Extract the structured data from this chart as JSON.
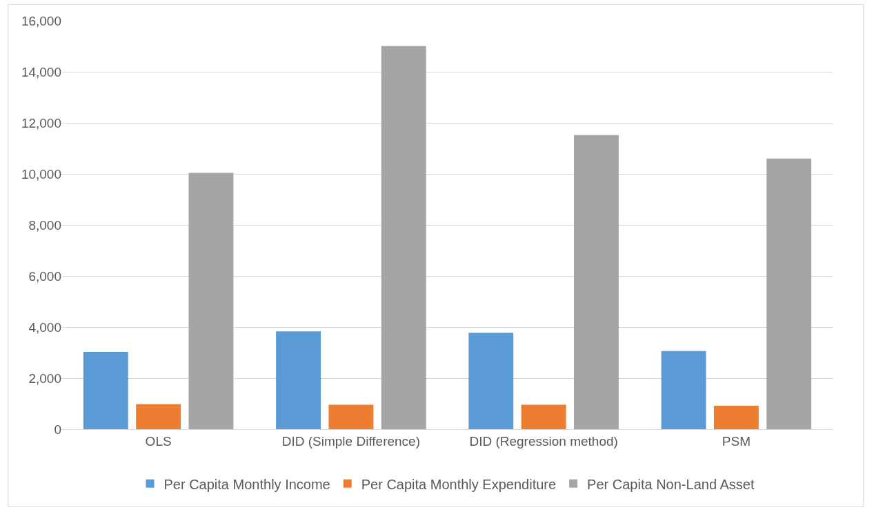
{
  "chart_data": {
    "type": "bar",
    "categories": [
      "OLS",
      "DID (Simple Difference)",
      "DID (Regression method)",
      "PSM"
    ],
    "series": [
      {
        "name": "Per Capita Monthly Income",
        "color": "#5b9bd5",
        "values": [
          3030,
          3830,
          3780,
          3060
        ]
      },
      {
        "name": "Per Capita Monthly Expenditure",
        "color": "#ed7d31",
        "values": [
          980,
          960,
          960,
          920
        ]
      },
      {
        "name": "Per Capita Non-Land Asset",
        "color": "#a5a5a5",
        "values": [
          10040,
          15010,
          11520,
          10600
        ]
      }
    ],
    "ylim": [
      0,
      16000
    ],
    "yticks": [
      {
        "value": 0,
        "label": "0"
      },
      {
        "value": 2000,
        "label": "2,000"
      },
      {
        "value": 4000,
        "label": "4,000"
      },
      {
        "value": 6000,
        "label": "6,000"
      },
      {
        "value": 8000,
        "label": "8,000"
      },
      {
        "value": 10000,
        "label": "10,000"
      },
      {
        "value": 12000,
        "label": "12,000"
      },
      {
        "value": 14000,
        "label": "14,000"
      },
      {
        "value": 16000,
        "label": "16,000"
      }
    ],
    "grid": "y",
    "legend": "bottom"
  }
}
